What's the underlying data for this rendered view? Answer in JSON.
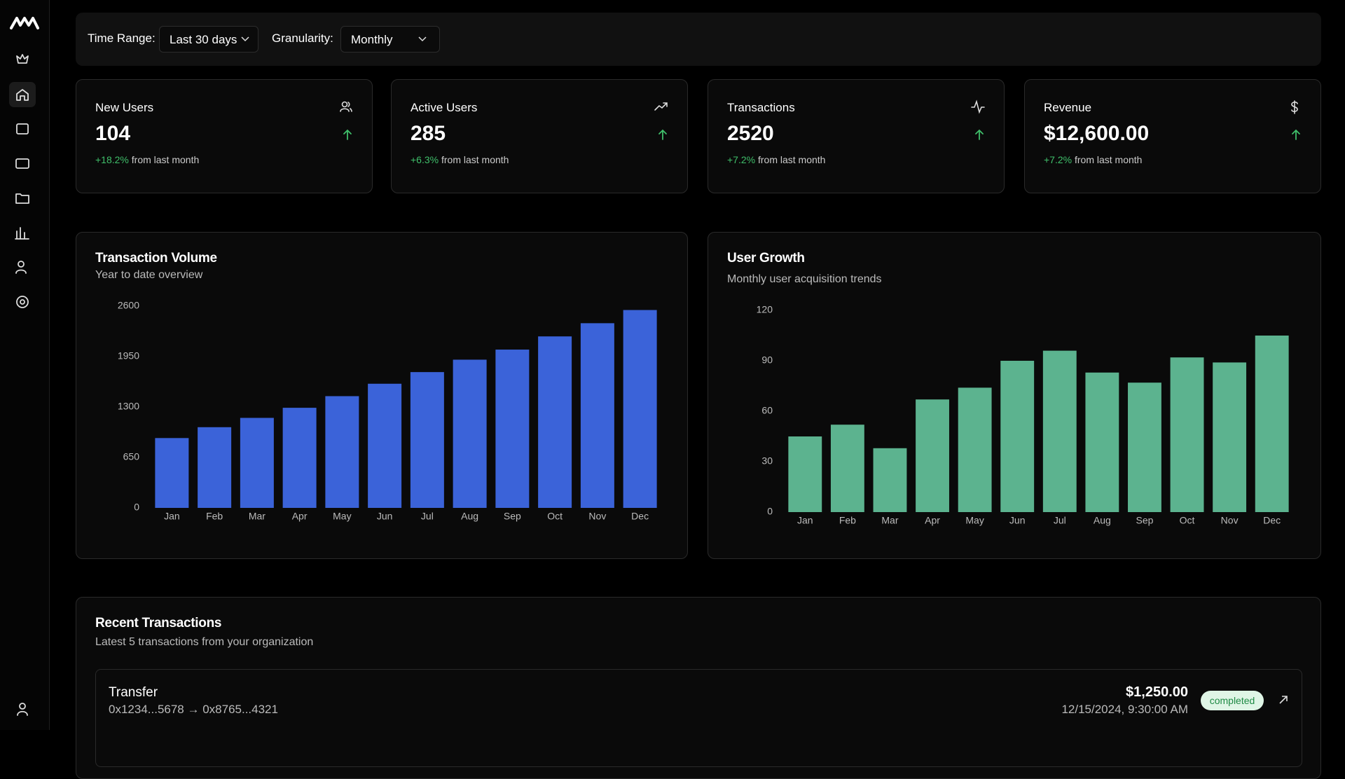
{
  "filters": {
    "time_range_label": "Time Range:",
    "time_range": "Last 30 days",
    "granularity_label": "Granularity:",
    "granularity": "Monthly"
  },
  "stats": [
    {
      "title": "New Users",
      "value": "104",
      "change": "+18.2%",
      "change_text": "from last month"
    },
    {
      "title": "Active Users",
      "value": "285",
      "change": "+6.3%",
      "change_text": "from last month"
    },
    {
      "title": "Transactions",
      "value": "2520",
      "change": "+7.2%",
      "change_text": "from last month"
    },
    {
      "title": "Revenue",
      "value": "$12,600.00",
      "change": "+7.2%",
      "change_text": "from last month"
    }
  ],
  "chart_data": [
    {
      "type": "bar",
      "title": "Transaction Volume",
      "subtitle": "Year to date overview",
      "categories": [
        "Jan",
        "Feb",
        "Mar",
        "Apr",
        "May",
        "Jun",
        "Jul",
        "Aug",
        "Sep",
        "Oct",
        "Nov",
        "Dec"
      ],
      "values": [
        900,
        1040,
        1160,
        1290,
        1440,
        1600,
        1750,
        1910,
        2040,
        2210,
        2380,
        2550
      ],
      "color": "#3b63d9",
      "ylim": [
        0,
        2600
      ],
      "yticks": [
        0,
        650,
        1300,
        1950,
        2600
      ],
      "grid": false
    },
    {
      "type": "bar",
      "title": "User Growth",
      "subtitle": "Monthly user acquisition trends",
      "categories": [
        "Jan",
        "Feb",
        "Mar",
        "Apr",
        "May",
        "Jun",
        "Jul",
        "Aug",
        "Sep",
        "Oct",
        "Nov",
        "Dec"
      ],
      "values": [
        45,
        52,
        38,
        67,
        74,
        90,
        96,
        83,
        77,
        92,
        89,
        105
      ],
      "color": "#5cb38f",
      "ylim": [
        0,
        120
      ],
      "yticks": [
        0,
        30,
        60,
        90,
        120
      ],
      "grid": false
    }
  ],
  "recent": {
    "title": "Recent Transactions",
    "subtitle": "Latest 5 transactions from your organization",
    "rows": [
      {
        "type": "Transfer",
        "route": "0x1234...5678 → 0x8765...4321",
        "amount": "$1,250.00",
        "date": "12/15/2024, 9:30:00 AM",
        "status": "completed"
      }
    ]
  }
}
